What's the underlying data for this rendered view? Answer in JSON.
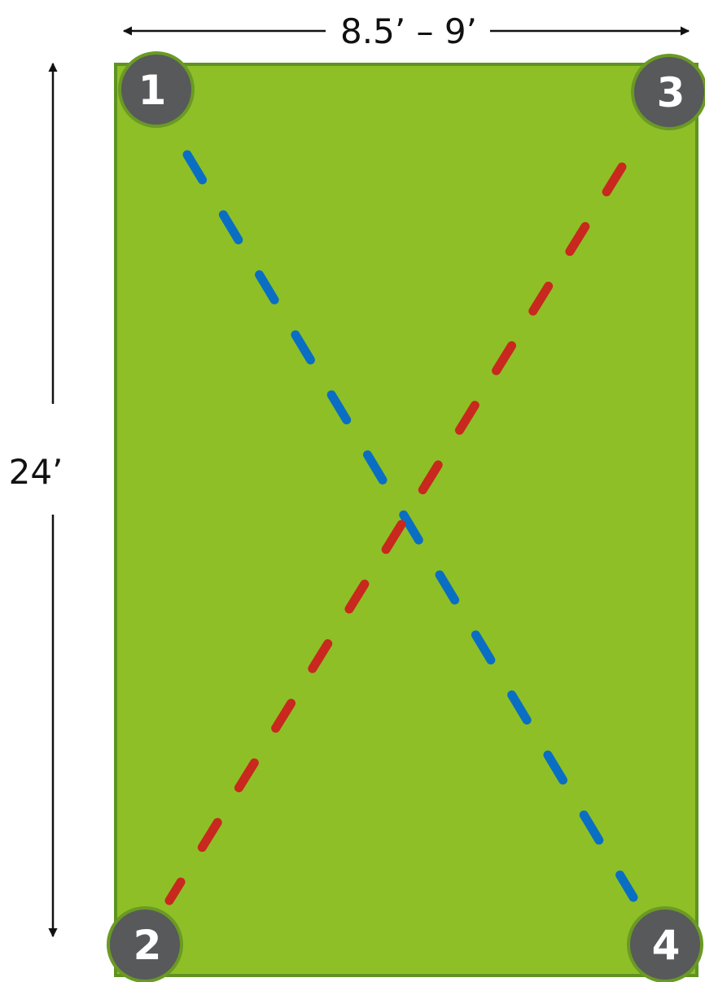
{
  "dimensions": {
    "width_label": "8.5’ – 9’",
    "length_label": "24’"
  },
  "corners": [
    {
      "id": "corner-1",
      "label": "1"
    },
    {
      "id": "corner-2",
      "label": "2"
    },
    {
      "id": "corner-3",
      "label": "3"
    },
    {
      "id": "corner-4",
      "label": "4"
    }
  ],
  "colors": {
    "field_fill": "#8fbf27",
    "field_border": "#5f9321",
    "corner_fill": "#58595b",
    "corner_border": "#6a9a24",
    "diagonal_blue": "#0a6fc2",
    "diagonal_red": "#c8281e",
    "dimension_line": "#111111"
  }
}
